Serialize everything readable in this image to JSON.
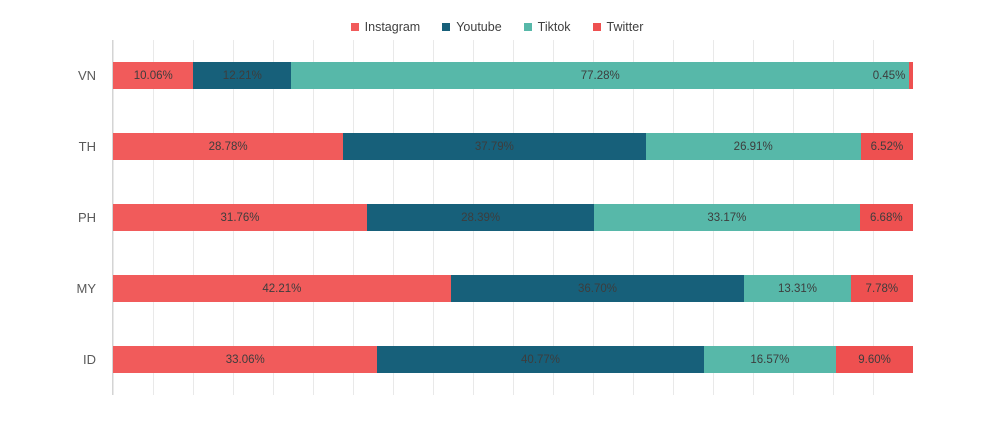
{
  "chart_data": {
    "type": "bar",
    "orientation": "horizontal",
    "stacked": true,
    "title": "",
    "xlabel": "",
    "ylabel": "",
    "xlim": [
      0,
      100
    ],
    "grid": "vertical",
    "grid_step_percent": 5,
    "legend_position": "top",
    "value_format": "percent",
    "categories": [
      "VN",
      "TH",
      "PH",
      "MY",
      "ID"
    ],
    "series": [
      {
        "name": "Instagram",
        "color": "#f15b5b",
        "values": [
          10.06,
          28.78,
          31.76,
          42.21,
          33.06
        ]
      },
      {
        "name": "Youtube",
        "color": "#17607a",
        "values": [
          12.21,
          37.79,
          28.39,
          36.7,
          40.77
        ]
      },
      {
        "name": "Tiktok",
        "color": "#57b8a9",
        "values": [
          77.28,
          26.91,
          33.17,
          13.31,
          16.57
        ]
      },
      {
        "name": "Twitter",
        "color": "#ee5050",
        "values": [
          0.45,
          6.52,
          6.68,
          7.78,
          9.6
        ]
      }
    ],
    "value_labels": [
      [
        "10.06%",
        "12.21%",
        "77.28%",
        "0.45%"
      ],
      [
        "28.78%",
        "37.79%",
        "26.91%",
        "6.52%"
      ],
      [
        "31.76%",
        "28.39%",
        "33.17%",
        "6.68%"
      ],
      [
        "42.21%",
        "36.70%",
        "13.31%",
        "7.78%"
      ],
      [
        "33.06%",
        "40.77%",
        "16.57%",
        "9.60%"
      ]
    ]
  },
  "colors": {
    "grid": "#e9e9e9",
    "axis": "#d4d4d4",
    "category_label": "#595959",
    "value_label": "#3d3d3d",
    "legend_label": "#404040",
    "background": "#ffffff"
  }
}
